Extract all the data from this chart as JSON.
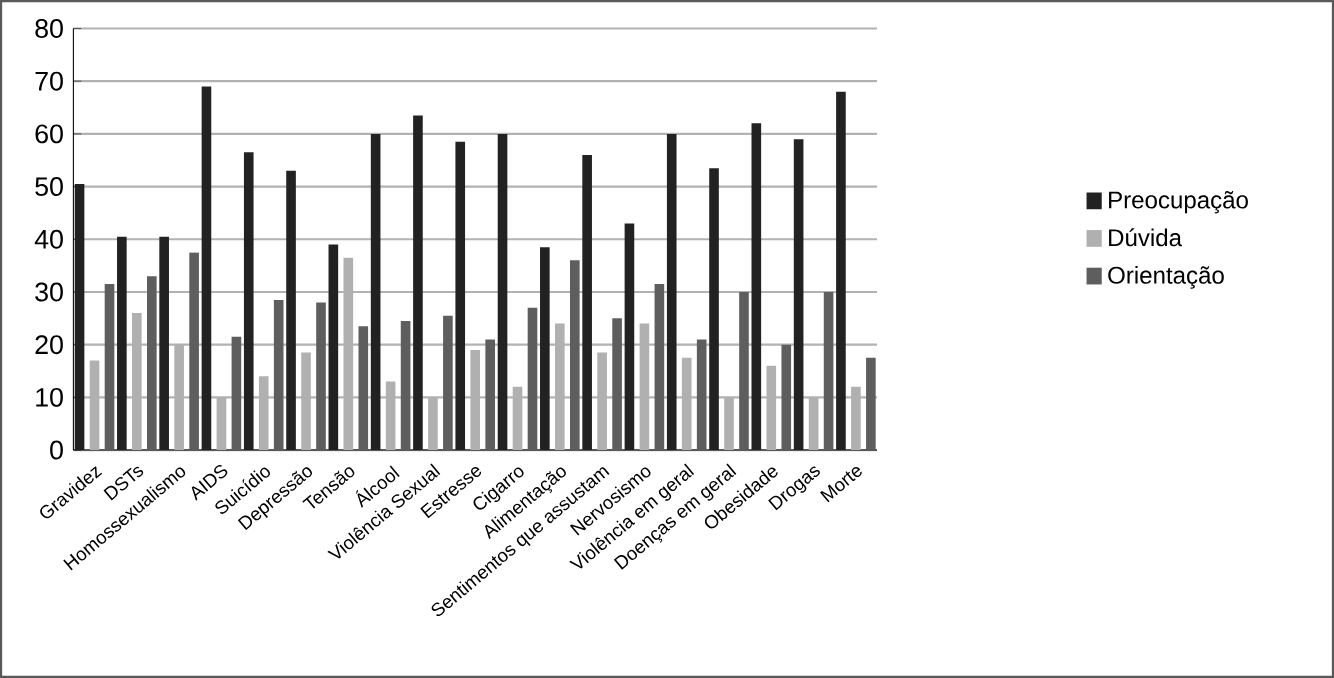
{
  "chart_data": {
    "type": "bar",
    "categories": [
      "Gravidez",
      "DSTs",
      "Homossexualismo",
      "AIDS",
      "Suicídio",
      "Depressão",
      "Tensão",
      "Álcool",
      "Violência Sexual",
      "Estresse",
      "Cigarro",
      "Alimentação",
      "Sentimentos que assustam",
      "Nervosismo",
      "Violência em geral",
      "Doenças em geral",
      "Obesidade",
      "Drogas",
      "Morte"
    ],
    "series": [
      {
        "name": "Preocupação",
        "color": "#222222",
        "values": [
          50.5,
          40.5,
          40.5,
          69,
          56.5,
          53,
          39,
          60,
          63.5,
          58.5,
          60,
          38.5,
          56,
          43,
          60,
          53.5,
          62,
          59,
          68
        ]
      },
      {
        "name": "Dúvida",
        "color": "#b0b0b0",
        "values": [
          17,
          26,
          20,
          10,
          14,
          18.5,
          36.5,
          13,
          10,
          19,
          12,
          24,
          18.5,
          24,
          17.5,
          10,
          16,
          10,
          12
        ]
      },
      {
        "name": "Orientação",
        "color": "#5e5e5e",
        "values": [
          31.5,
          33,
          37.5,
          21.5,
          28.5,
          28,
          23.5,
          24.5,
          25.5,
          21,
          27,
          36,
          25,
          31.5,
          21,
          30,
          20,
          30,
          17.5
        ]
      }
    ],
    "ylim": [
      0,
      80
    ],
    "yticks": [
      0,
      10,
      20,
      30,
      40,
      50,
      60,
      70,
      80
    ],
    "grid": "y",
    "legend": "right"
  }
}
